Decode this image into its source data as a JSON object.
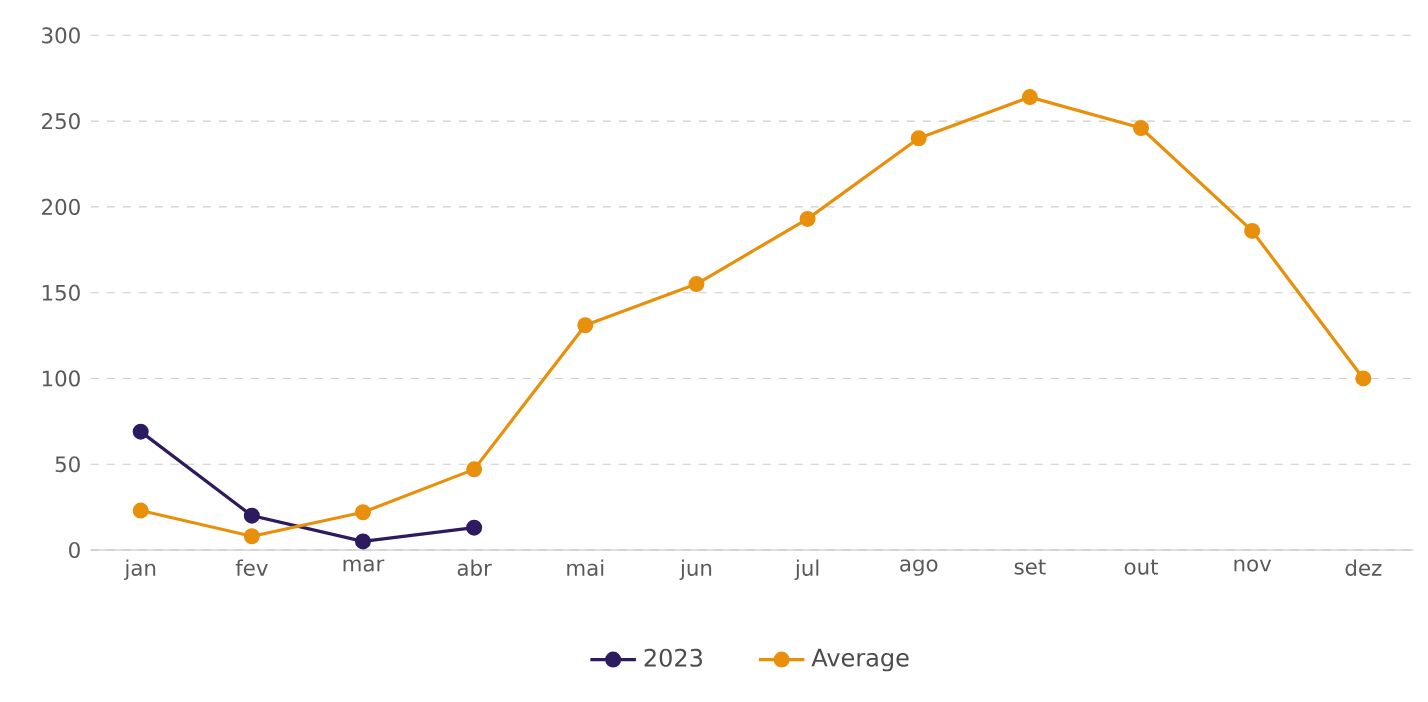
{
  "chart_data": {
    "type": "line",
    "categories": [
      "jan",
      "fev",
      "mar",
      "abr",
      "mai",
      "jun",
      "jul",
      "ago",
      "set",
      "out",
      "nov",
      "dez"
    ],
    "series": [
      {
        "name": "2023",
        "color": "#2e1a5e",
        "values": [
          69,
          20,
          5,
          13,
          null,
          null,
          null,
          null,
          null,
          null,
          null,
          null
        ]
      },
      {
        "name": "Average",
        "color": "#e8900c",
        "values": [
          23,
          8,
          22,
          47,
          131,
          155,
          193,
          240,
          264,
          246,
          186,
          100
        ]
      }
    ],
    "ylim": [
      0,
      300
    ],
    "yticks": [
      0,
      50,
      100,
      150,
      200,
      250,
      300
    ],
    "grid": "y",
    "legend": "bottom",
    "marker": "circle",
    "line_style": "solid"
  }
}
